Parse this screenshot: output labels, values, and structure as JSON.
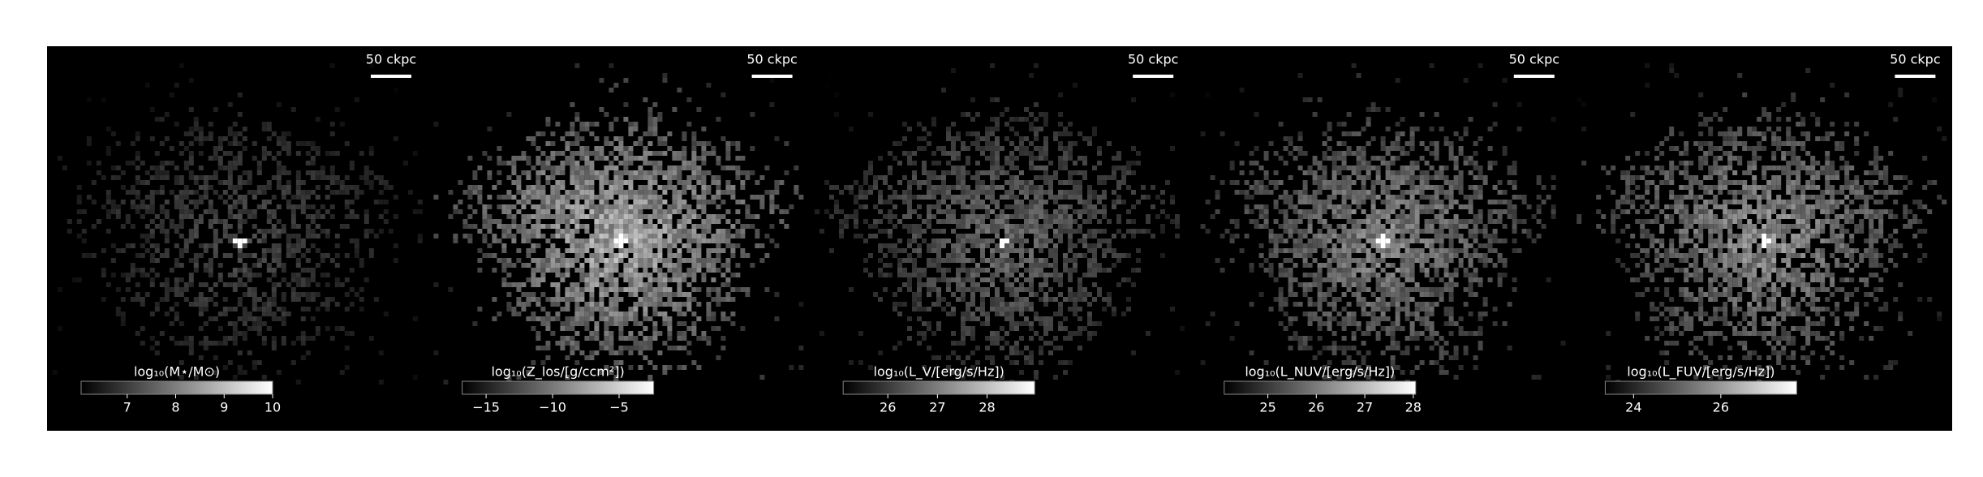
{
  "chart_data": [
    {
      "type": "image",
      "scale_bar": "50 ckpc",
      "colorbar_label": "log₁₀(M⋆/M⊙)",
      "clim": [
        6.05,
        10
      ],
      "cticks": [
        7,
        8,
        9,
        10
      ]
    },
    {
      "type": "image",
      "scale_bar": "50 ckpc",
      "colorbar_label": "log₁₀(Z_los/[g/ccm²])",
      "clim": [
        -16.8,
        -2.4
      ],
      "cticks": [
        {
          "value": -15,
          "label": "−15"
        },
        {
          "value": -10,
          "label": "−10"
        },
        {
          "value": -5,
          "label": "−5"
        }
      ]
    },
    {
      "type": "image",
      "scale_bar": "50 ckpc",
      "colorbar_label": "log₁₀(L_V/[erg/s/Hz])",
      "clim": [
        25.1,
        28.96
      ],
      "cticks": [
        26,
        27,
        28
      ]
    },
    {
      "type": "image",
      "scale_bar": "50 ckpc",
      "colorbar_label": "log₁₀(L_NUV/[erg/s/Hz])",
      "clim": [
        24.1,
        28.05
      ],
      "cticks": [
        25,
        26,
        27,
        28
      ]
    },
    {
      "type": "image",
      "scale_bar": "50 ckpc",
      "colorbar_label": "log₁₀(L_FUV/[erg/s/Hz])",
      "clim": [
        23.35,
        27.74
      ],
      "cticks": [
        24,
        26
      ]
    }
  ]
}
